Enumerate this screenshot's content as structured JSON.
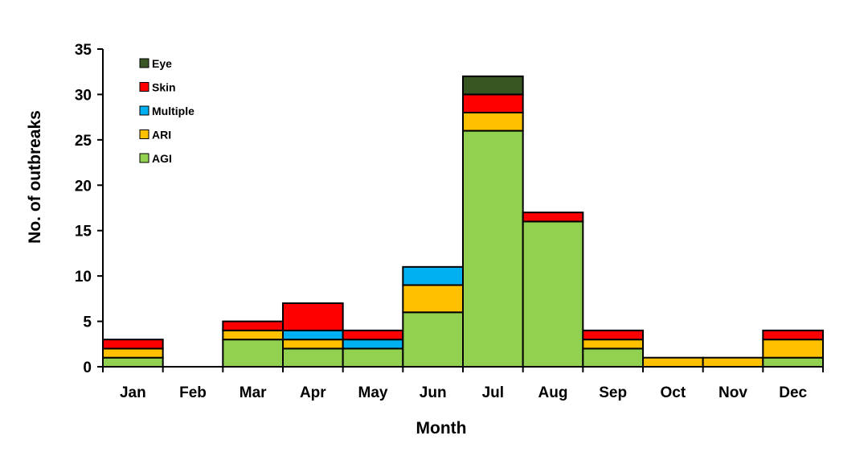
{
  "chart_data": {
    "type": "bar",
    "stacked": true,
    "title": "",
    "xlabel": "Month",
    "ylabel": "No. of outbreaks",
    "ylim": [
      0,
      35
    ],
    "yticks": [
      0,
      5,
      10,
      15,
      20,
      25,
      30,
      35
    ],
    "grid": false,
    "legend_position": "top-left",
    "categories": [
      "Jan",
      "Feb",
      "Mar",
      "Apr",
      "May",
      "Jun",
      "Jul",
      "Aug",
      "Sep",
      "Oct",
      "Nov",
      "Dec"
    ],
    "series": [
      {
        "name": "AGI",
        "color": "#92d050",
        "values": [
          1,
          0,
          3,
          2,
          2,
          6,
          26,
          16,
          2,
          0,
          0,
          1
        ]
      },
      {
        "name": "ARI",
        "color": "#ffc000",
        "values": [
          1,
          0,
          1,
          1,
          0,
          3,
          2,
          0,
          1,
          1,
          1,
          2
        ]
      },
      {
        "name": "Multiple",
        "color": "#00b0f0",
        "values": [
          0,
          0,
          0,
          1,
          1,
          2,
          0,
          0,
          0,
          0,
          0,
          0
        ]
      },
      {
        "name": "Skin",
        "color": "#ff0000",
        "values": [
          1,
          0,
          1,
          3,
          1,
          0,
          2,
          1,
          1,
          0,
          0,
          1
        ]
      },
      {
        "name": "Eye",
        "color": "#375623",
        "values": [
          0,
          0,
          0,
          0,
          0,
          0,
          2,
          0,
          0,
          0,
          0,
          0
        ]
      }
    ]
  }
}
